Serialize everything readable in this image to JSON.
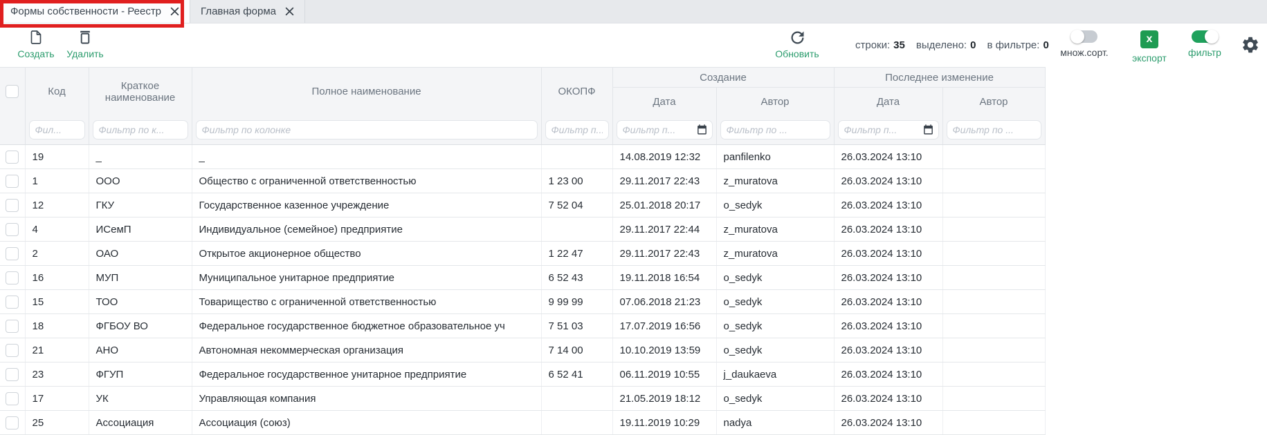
{
  "colors": {
    "accent_green": "#2b9c6d",
    "toggle_on_green": "#1fa15c",
    "excel_green": "#1e9b52",
    "annotation_red": "#e01f1f",
    "header_bg": "#f4f5f7"
  },
  "icons": {
    "create": "new-document",
    "delete": "trash",
    "refresh": "circular-arrow",
    "export": "excel-x",
    "filter_date": "calendar",
    "settings": "gear",
    "tab_close": "close-x"
  },
  "tabs": [
    {
      "label": "Формы собственности - Реестр",
      "active": true,
      "highlighted": true
    },
    {
      "label": "Главная форма",
      "active": false
    }
  ],
  "toolbar": {
    "create": "Создать",
    "delete": "Удалить",
    "refresh": "Обновить",
    "stats": [
      {
        "label": "строки:",
        "value": "35"
      },
      {
        "label": "выделено:",
        "value": "0"
      },
      {
        "label": "в фильтре:",
        "value": "0"
      }
    ],
    "multisort_label": "множ.сорт.",
    "multisort_on": false,
    "export_label": "экспорт",
    "export_icon_letter": "x",
    "filter_label": "фильтр",
    "filter_on": true
  },
  "table": {
    "headers": {
      "code": "Код",
      "short_name": "Краткое наименование",
      "full_name": "Полное наименование",
      "okopf": "ОКОПФ",
      "creation_group": "Создание",
      "change_group": "Последнее изменение",
      "date": "Дата",
      "author": "Автор"
    },
    "filters": {
      "code": "Фил...",
      "short_name": "Фильтр по к...",
      "full_name": "Фильтр по колонке",
      "okopf": "Фильтр п...",
      "creation_date": "Фильтр п...",
      "creation_author": "Фильтр по ...",
      "change_date": "Фильтр п...",
      "change_author": "Фильтр по ..."
    },
    "rows": [
      {
        "code": "19",
        "short_name": "_",
        "full_name": "_",
        "okopf": "",
        "creation_date": "14.08.2019 12:32",
        "creation_author": "panfilenko",
        "change_date": "26.03.2024 13:10",
        "change_author": ""
      },
      {
        "code": "1",
        "short_name": "ООО",
        "full_name": "Общество с ограниченной ответственностью",
        "okopf": "1 23 00",
        "creation_date": "29.11.2017 22:43",
        "creation_author": "z_muratova",
        "change_date": "26.03.2024 13:10",
        "change_author": ""
      },
      {
        "code": "12",
        "short_name": "ГКУ",
        "full_name": "Государственное казенное учреждение",
        "okopf": "7 52 04",
        "creation_date": "25.01.2018 20:17",
        "creation_author": "o_sedyk",
        "change_date": "26.03.2024 13:10",
        "change_author": ""
      },
      {
        "code": "4",
        "short_name": "ИСемП",
        "full_name": "Индивидуальное (семейное) предприятие",
        "okopf": "",
        "creation_date": "29.11.2017 22:44",
        "creation_author": "z_muratova",
        "change_date": "26.03.2024 13:10",
        "change_author": ""
      },
      {
        "code": "2",
        "short_name": "ОАО",
        "full_name": "Открытое акционерное общество",
        "okopf": "1 22 47",
        "creation_date": "29.11.2017 22:43",
        "creation_author": "z_muratova",
        "change_date": "26.03.2024 13:10",
        "change_author": ""
      },
      {
        "code": "16",
        "short_name": "МУП",
        "full_name": "Муниципальное унитарное предприятие",
        "okopf": "6 52 43",
        "creation_date": "19.11.2018 16:54",
        "creation_author": "o_sedyk",
        "change_date": "26.03.2024 13:10",
        "change_author": ""
      },
      {
        "code": "15",
        "short_name": "ТОО",
        "full_name": "Товарищество с ограниченной ответственностью",
        "okopf": "9 99 99",
        "creation_date": "07.06.2018 21:23",
        "creation_author": "o_sedyk",
        "change_date": "26.03.2024 13:10",
        "change_author": ""
      },
      {
        "code": "18",
        "short_name": "ФГБОУ ВО",
        "full_name": "Федеральное государственное бюджетное образовательное уч",
        "okopf": "7 51 03",
        "creation_date": "17.07.2019 16:56",
        "creation_author": "o_sedyk",
        "change_date": "26.03.2024 13:10",
        "change_author": ""
      },
      {
        "code": "21",
        "short_name": "АНО",
        "full_name": "Автономная некоммерческая организация",
        "okopf": "7 14 00",
        "creation_date": "10.10.2019 13:59",
        "creation_author": "o_sedyk",
        "change_date": "26.03.2024 13:10",
        "change_author": ""
      },
      {
        "code": "23",
        "short_name": "ФГУП",
        "full_name": "Федеральное государственное унитарное предприятие",
        "okopf": "6 52 41",
        "creation_date": "06.11.2019 10:55",
        "creation_author": "j_daukaeva",
        "change_date": "26.03.2024 13:10",
        "change_author": ""
      },
      {
        "code": "17",
        "short_name": "УК",
        "full_name": "Управляющая компания",
        "okopf": "",
        "creation_date": "21.05.2019 18:12",
        "creation_author": "o_sedyk",
        "change_date": "26.03.2024 13:10",
        "change_author": ""
      },
      {
        "code": "25",
        "short_name": "Ассоциация",
        "full_name": "Ассоциация (союз)",
        "okopf": "",
        "creation_date": "19.11.2019 10:29",
        "creation_author": "nadya",
        "change_date": "26.03.2024 13:10",
        "change_author": ""
      }
    ]
  }
}
